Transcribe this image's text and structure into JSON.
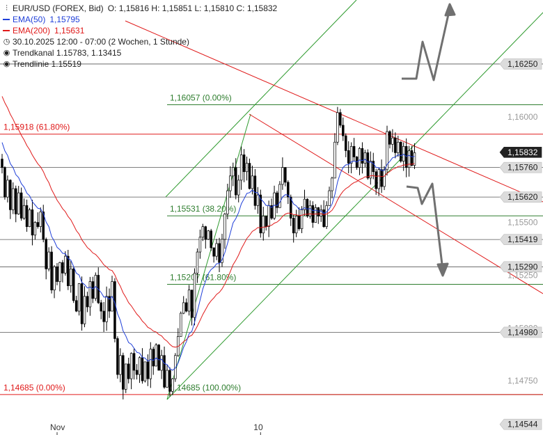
{
  "legend": {
    "symbol": "EUR/USD (FOREX, Bid)",
    "ohlc": "O: 1,15816  H: 1,15851  L: 1,15810  C: 1,15832",
    "ema50_label": "EMA(50)",
    "ema50_value": "1,15795",
    "ema200_label": "EMA(200)",
    "ema200_value": "1,15631",
    "period": "30.10.2025 12:00 - 07:00   (2 Wochen, 1 Stunde)",
    "trendkanal": "Trendkanal  1.15783, 1.13415",
    "trendlinie": "Trendlinie  1.15519"
  },
  "colors": {
    "candle": "#000000",
    "ema50": "#1f3fd9",
    "ema200": "#e01a1a",
    "fib": "#2e7d2e",
    "horizontal": "#555555",
    "trendline": "#e01a1a",
    "channel": "#2e9a2e",
    "arrow": "#707070",
    "price_tag": "#222222"
  },
  "chart_data": {
    "type": "candlestick",
    "ylim": [
      1.1452,
      1.1652
    ],
    "x_ticks": [
      {
        "label": "Nov",
        "bar": 20
      },
      {
        "label": "10",
        "bar": 94
      }
    ],
    "y_axis_labels": [
      "1,16000",
      "1,15500",
      "1,15250",
      "1,15000",
      "1,14750"
    ],
    "price_tags": [
      {
        "label": "1,16250",
        "y": 1.1625,
        "dark": false
      },
      {
        "label": "1,15832",
        "y": 1.15832,
        "dark": true
      },
      {
        "label": "1,15760",
        "y": 1.1576,
        "dark": false
      },
      {
        "label": "1,15620",
        "y": 1.1562,
        "dark": false
      },
      {
        "label": "1,15419",
        "y": 1.15419,
        "dark": false
      },
      {
        "label": "1,15290",
        "y": 1.1529,
        "dark": false
      },
      {
        "label": "1,14980",
        "y": 1.1498,
        "dark": false
      },
      {
        "label": "1,14544",
        "y": 1.14544,
        "dark": false
      }
    ],
    "fib_levels": [
      {
        "label": "1,16057 (0.00%)",
        "y": 1.16057
      },
      {
        "label": "1,15531 (38.20%)",
        "y": 1.15531
      },
      {
        "label": "1,15207 (61.80%)",
        "y": 1.15207
      },
      {
        "label": "1,14685 (100.00%)",
        "y": 1.14685
      }
    ],
    "red_levels": [
      {
        "label": "1,15918 (61.80%)",
        "y": 1.15918
      },
      {
        "label": "1,14685 (0.00%)",
        "y": 1.14685
      }
    ],
    "horizontal_lines": [
      1.1625,
      1.1576,
      1.1562,
      1.15419,
      1.1529,
      1.1498
    ],
    "closes": [
      1.1576,
      1.1562,
      1.157,
      1.1556,
      1.1566,
      1.1554,
      1.1564,
      1.1552,
      1.1558,
      1.1548,
      1.1556,
      1.1544,
      1.155,
      1.1548,
      1.1555,
      1.1542,
      1.1528,
      1.1536,
      1.1518,
      1.1529,
      1.1522,
      1.1531,
      1.1526,
      1.1534,
      1.152,
      1.1528,
      1.1513,
      1.1508,
      1.1521,
      1.1502,
      1.1515,
      1.151,
      1.1522,
      1.1514,
      1.1525,
      1.1512,
      1.1508,
      1.1503,
      1.1515,
      1.1508,
      1.1522,
      1.1495,
      1.1478,
      1.1487,
      1.1471,
      1.1483,
      1.1476,
      1.1488,
      1.148,
      1.1478,
      1.1486,
      1.1475,
      1.1484,
      1.1476,
      1.149,
      1.1482,
      1.1492,
      1.148,
      1.1487,
      1.1472,
      1.148,
      1.147,
      1.1476,
      1.1487,
      1.1496,
      1.1507,
      1.1512,
      1.1508,
      1.1518,
      1.1505,
      1.1526,
      1.1536,
      1.1543,
      1.1548,
      1.1542,
      1.1546,
      1.1538,
      1.1534,
      1.154,
      1.1531,
      1.1542,
      1.1554,
      1.1565,
      1.1572,
      1.1576,
      1.1563,
      1.157,
      1.1582,
      1.1574,
      1.1578,
      1.1566,
      1.1572,
      1.1558,
      1.1563,
      1.1545,
      1.1553,
      1.1548,
      1.1558,
      1.1552,
      1.1564,
      1.1557,
      1.1568,
      1.1576,
      1.1569,
      1.1562,
      1.1552,
      1.1545,
      1.1553,
      1.1547,
      1.1556,
      1.1561,
      1.1553,
      1.1558,
      1.155,
      1.1557,
      1.1553,
      1.1556,
      1.1548,
      1.1558,
      1.1565,
      1.1571,
      1.1588,
      1.1602,
      1.1596,
      1.1591,
      1.1584,
      1.1578,
      1.1586,
      1.1581,
      1.1576,
      1.1585,
      1.1578,
      1.1583,
      1.1571,
      1.1579,
      1.1574,
      1.1566,
      1.1575,
      1.1567,
      1.1575,
      1.1593,
      1.1587,
      1.159,
      1.1583,
      1.1588,
      1.1579,
      1.1586,
      1.1576,
      1.1584,
      1.1577,
      1.1583
    ]
  }
}
